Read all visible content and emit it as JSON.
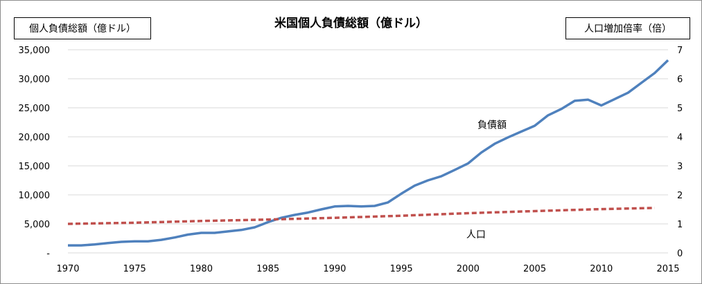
{
  "chart_data": {
    "type": "line",
    "title": "米国個人負債総額（億ドル）",
    "left_axis_label": "個人負債総額（億ドル）",
    "right_axis_label": "人口増加倍率（倍）",
    "xlim": [
      1970,
      2015
    ],
    "ylim_left": [
      0,
      35000
    ],
    "ylim_right": [
      0,
      7
    ],
    "x_ticks": [
      "1970",
      "1975",
      "1980",
      "1985",
      "1990",
      "1995",
      "2000",
      "2005",
      "2010",
      "2015"
    ],
    "y_left_ticks": [
      "-",
      "5,000",
      "10,000",
      "15,000",
      "20,000",
      "25,000",
      "30,000",
      "35,000"
    ],
    "y_right_ticks": [
      "0",
      "1",
      "2",
      "3",
      "4",
      "5",
      "6",
      "7"
    ],
    "grid": true,
    "series": [
      {
        "name": "負債額",
        "axis": "left",
        "color": "#4f81bd",
        "style": "solid",
        "x": [
          1970,
          1971,
          1972,
          1973,
          1974,
          1975,
          1976,
          1977,
          1978,
          1979,
          1980,
          1981,
          1982,
          1983,
          1984,
          1985,
          1986,
          1987,
          1988,
          1989,
          1990,
          1991,
          1992,
          1993,
          1994,
          1995,
          1996,
          1997,
          1998,
          1999,
          2000,
          2001,
          2002,
          2003,
          2004,
          2005,
          2006,
          2007,
          2008,
          2009,
          2010,
          2011,
          2012,
          2013,
          2014,
          2015
        ],
        "values": [
          1300,
          1300,
          1450,
          1700,
          1900,
          2000,
          2000,
          2250,
          2650,
          3150,
          3450,
          3450,
          3700,
          3950,
          4400,
          5300,
          6050,
          6550,
          6950,
          7500,
          8000,
          8100,
          8000,
          8100,
          8700,
          10200,
          11600,
          12500,
          13200,
          14300,
          15400,
          17300,
          18800,
          19900,
          20900,
          21900,
          23700,
          24800,
          26200,
          26400,
          25400,
          26500,
          27600,
          29300,
          31000,
          33200
        ]
      },
      {
        "name": "人口",
        "axis": "right",
        "color": "#c0504d",
        "style": "dashed",
        "x": [
          1970,
          1975,
          1980,
          1985,
          1990,
          1995,
          2000,
          2005,
          2010,
          2014
        ],
        "values": [
          1.0,
          1.04,
          1.1,
          1.15,
          1.21,
          1.28,
          1.37,
          1.44,
          1.51,
          1.55
        ]
      }
    ],
    "annotations": [
      {
        "text": "負債額",
        "series": "負債額"
      },
      {
        "text": "人口",
        "series": "人口"
      }
    ]
  }
}
